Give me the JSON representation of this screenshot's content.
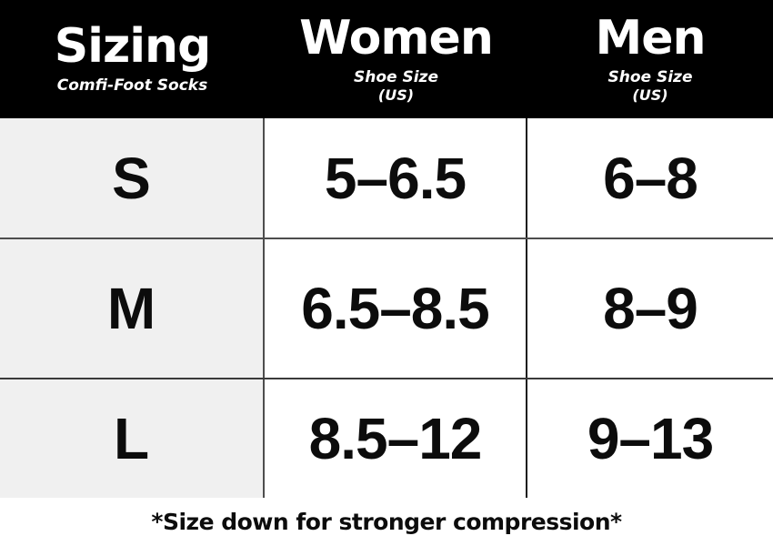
{
  "colors": {
    "header_bg": "#000000",
    "header_text": "#ffffff",
    "size_column_bg": "#f0f0f0",
    "body_bg": "#ffffff",
    "grid_line": "#3a3a3a",
    "body_text": "#0c0c0c"
  },
  "header": {
    "sizing": {
      "title": "Sizing",
      "subtitle": "Comfi-Foot Socks"
    },
    "women": {
      "title": "Women",
      "subtitle_line1": "Shoe Size",
      "subtitle_line2": "(US)"
    },
    "men": {
      "title": "Men",
      "subtitle_line1": "Shoe Size",
      "subtitle_line2": "(US)"
    }
  },
  "table": {
    "rows": [
      {
        "size": "S",
        "women": "5–6.5",
        "men": "6–8"
      },
      {
        "size": "M",
        "women": "6.5–8.5",
        "men": "8–9"
      },
      {
        "size": "L",
        "women": "8.5–12",
        "men": "9–13"
      }
    ]
  },
  "footer": {
    "note": "*Size down for stronger compression*"
  },
  "chart_data": {
    "type": "table",
    "title": "Sizing — Comfi-Foot Socks",
    "columns": [
      "Sizing",
      "Women Shoe Size (US)",
      "Men Shoe Size (US)"
    ],
    "rows": [
      [
        "S",
        "5–6.5",
        "6–8"
      ],
      [
        "M",
        "6.5–8.5",
        "8–9"
      ],
      [
        "L",
        "8.5–12",
        "9–13"
      ]
    ],
    "footnote": "*Size down for stronger compression*",
    "layout": {
      "header_style": "black-band",
      "first_column_shaded": true,
      "grid": "thin-dark-lines"
    }
  }
}
